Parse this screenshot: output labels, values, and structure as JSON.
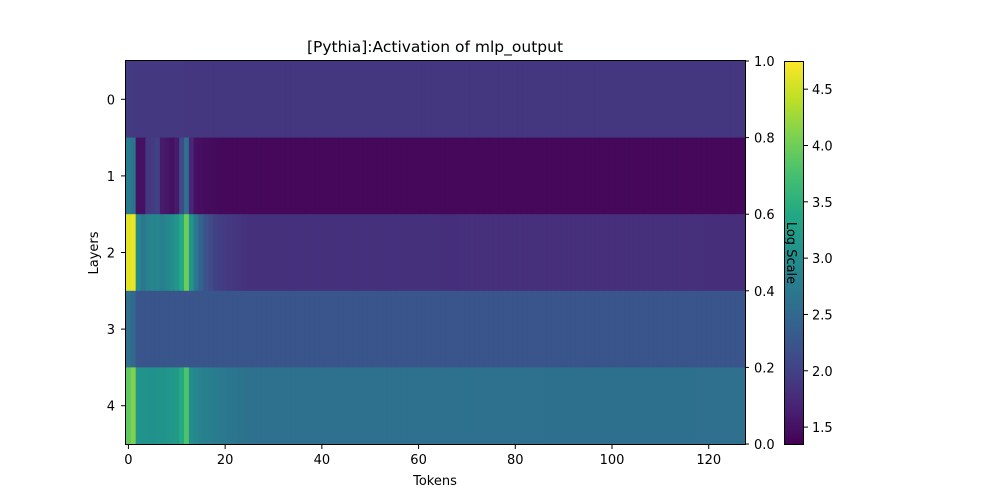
{
  "chart_data": {
    "type": "heatmap",
    "title": "[Pythia]:Activation of mlp_output",
    "xlabel": "Tokens",
    "ylabel": "Layers",
    "colorbar_label": "Log Scale",
    "colormap": "viridis",
    "x_range": [
      -0.5,
      127.5
    ],
    "x_ticks": [
      0,
      20,
      40,
      60,
      80,
      100,
      120
    ],
    "y_ticks": [
      0,
      1,
      2,
      3,
      4
    ],
    "right_axis_ticks": [
      "0.0",
      "0.2",
      "0.4",
      "0.6",
      "0.8",
      "1.0"
    ],
    "color_range": [
      1.35,
      4.75
    ],
    "colorbar_ticks": [
      "1.5",
      "2.0",
      "2.5",
      "3.0",
      "3.5",
      "4.0",
      "4.5"
    ],
    "colorbar_tick_values": [
      1.5,
      2.0,
      2.5,
      3.0,
      3.5,
      4.0,
      4.5
    ],
    "n_tokens": 128,
    "layers": [
      {
        "layer": 0,
        "baseline": 1.88,
        "profile": [
          [
            0,
            1.95
          ],
          [
            1,
            1.92
          ],
          [
            4,
            1.9
          ],
          [
            10,
            1.9
          ],
          [
            20,
            1.88
          ],
          [
            127,
            1.88
          ]
        ]
      },
      {
        "layer": 1,
        "baseline": 1.42,
        "profile": [
          [
            0,
            2.75
          ],
          [
            1,
            2.65
          ],
          [
            2,
            1.5
          ],
          [
            3,
            1.5
          ],
          [
            4,
            1.9
          ],
          [
            5,
            1.95
          ],
          [
            6,
            2.0
          ],
          [
            7,
            1.6
          ],
          [
            8,
            1.55
          ],
          [
            9,
            1.5
          ],
          [
            10,
            1.6
          ],
          [
            11,
            2.1
          ],
          [
            12,
            2.6
          ],
          [
            13,
            1.7
          ],
          [
            14,
            1.5
          ],
          [
            16,
            1.45
          ],
          [
            20,
            1.42
          ],
          [
            127,
            1.42
          ]
        ]
      },
      {
        "layer": 2,
        "baseline": 1.8,
        "profile": [
          [
            0,
            4.6
          ],
          [
            1,
            4.65
          ],
          [
            2,
            2.9
          ],
          [
            3,
            2.7
          ],
          [
            4,
            2.8
          ],
          [
            5,
            2.9
          ],
          [
            6,
            2.9
          ],
          [
            7,
            2.8
          ],
          [
            8,
            2.9
          ],
          [
            9,
            3.0
          ],
          [
            10,
            3.1
          ],
          [
            11,
            3.4
          ],
          [
            12,
            4.0
          ],
          [
            13,
            3.1
          ],
          [
            14,
            2.7
          ],
          [
            15,
            2.4
          ],
          [
            16,
            2.2
          ],
          [
            18,
            2.0
          ],
          [
            21,
            1.9
          ],
          [
            25,
            1.82
          ],
          [
            127,
            1.8
          ]
        ]
      },
      {
        "layer": 3,
        "baseline": 2.25,
        "profile": [
          [
            0,
            2.6
          ],
          [
            1,
            2.5
          ],
          [
            2,
            2.25
          ],
          [
            127,
            2.25
          ]
        ]
      },
      {
        "layer": 4,
        "baseline": 2.6,
        "profile": [
          [
            0,
            3.9
          ],
          [
            1,
            4.1
          ],
          [
            2,
            3.1
          ],
          [
            5,
            3.05
          ],
          [
            8,
            3.1
          ],
          [
            10,
            3.2
          ],
          [
            11,
            3.4
          ],
          [
            12,
            3.8
          ],
          [
            13,
            3.0
          ],
          [
            14,
            2.9
          ],
          [
            16,
            2.8
          ],
          [
            20,
            2.7
          ],
          [
            25,
            2.62
          ],
          [
            127,
            2.6
          ]
        ]
      }
    ]
  }
}
